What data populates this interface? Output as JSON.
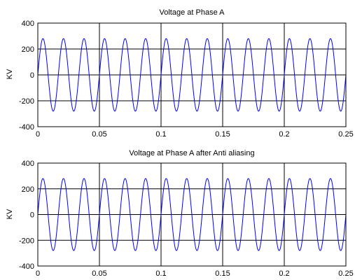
{
  "chart_data": [
    {
      "type": "line",
      "title": "Voltage at Phase A",
      "xlabel": "",
      "ylabel": "KV",
      "xlim": [
        0,
        0.25
      ],
      "ylim": [
        -400,
        400
      ],
      "xticks": [
        "0",
        "0.05",
        "0.1",
        "0.15",
        "0.2",
        "0.25"
      ],
      "yticks": [
        "400",
        "200",
        "0",
        "-200",
        "-400"
      ],
      "grid": true,
      "series": [
        {
          "amplitude": 280,
          "frequency_hz": 60,
          "phase_deg": 0,
          "color": "#0000ff"
        }
      ]
    },
    {
      "type": "line",
      "title": "Voltage at Phase A after Anti aliasing",
      "xlabel": "",
      "ylabel": "KV",
      "xlim": [
        0,
        0.25
      ],
      "ylim": [
        -400,
        400
      ],
      "xticks": [
        "0",
        "0.05",
        "0.1",
        "0.15",
        "0.2",
        "0.25"
      ],
      "yticks": [
        "400",
        "200",
        "0",
        "-200",
        "-400"
      ],
      "grid": true,
      "series": [
        {
          "amplitude": 280,
          "frequency_hz": 60,
          "phase_deg": 0,
          "color": "#0000ff"
        }
      ]
    }
  ]
}
